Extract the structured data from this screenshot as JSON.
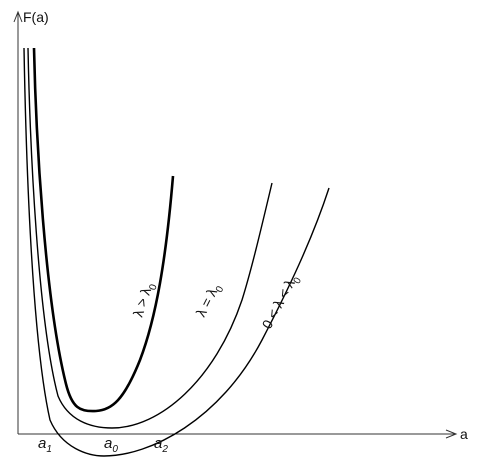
{
  "axes": {
    "y_label": "F(a)",
    "x_label": "a"
  },
  "points": [
    {
      "base": "a",
      "sub": "1"
    },
    {
      "base": "a",
      "sub": "0"
    },
    {
      "base": "a",
      "sub": "2"
    }
  ],
  "curves": [
    {
      "label_main": "λ > λ",
      "label_sub": "0"
    },
    {
      "label_main": "λ = λ",
      "label_sub": "0"
    },
    {
      "label_main": "0 < λ < λ",
      "label_sub": "0"
    }
  ]
}
